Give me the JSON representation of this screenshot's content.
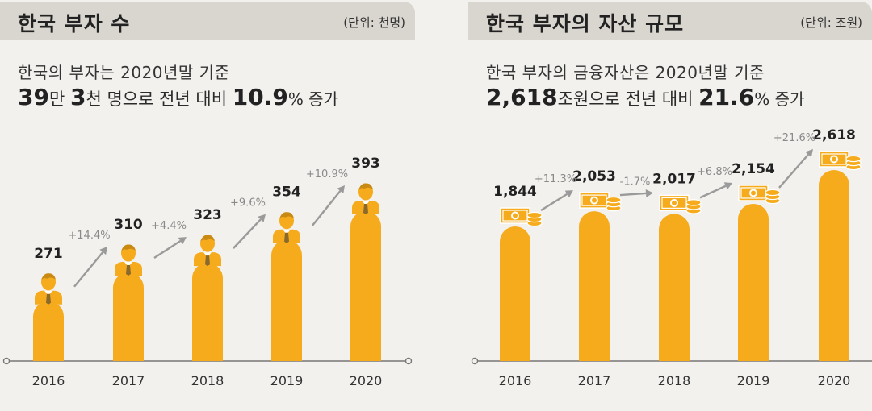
{
  "left": {
    "title": "한국 부자 수",
    "unit": "(단위: 천명)",
    "subtitle": "한국의 부자는 2020년말 기준",
    "headline": {
      "n1": "39",
      "t1": "만 ",
      "n2": "3",
      "t2": "천 명으로 전년 대비 ",
      "n3": "10.9",
      "t3": "% 증가"
    }
  },
  "right": {
    "title": "한국 부자의 자산 규모",
    "unit": "(단위: 조원)",
    "subtitle": "한국 부자의 금융자산은 2020년말 기준",
    "headline": {
      "n1": "2,618",
      "t1": "조원으로 전년 대비 ",
      "n2": "21.6",
      "t2": "% 증가"
    }
  },
  "chart_data": [
    {
      "type": "bar",
      "title": "한국 부자 수",
      "unit": "천명",
      "categories": [
        "2016",
        "2017",
        "2018",
        "2019",
        "2020"
      ],
      "values": [
        271,
        310,
        323,
        354,
        393
      ],
      "value_labels": [
        "271",
        "310",
        "323",
        "354",
        "393"
      ],
      "changes": [
        "+14.4%",
        "+4.4%",
        "+9.6%",
        "+10.9%"
      ],
      "icon": "person-icon",
      "color": "#f5ab1c"
    },
    {
      "type": "bar",
      "title": "한국 부자의 자산 규모",
      "unit": "조원",
      "categories": [
        "2016",
        "2017",
        "2018",
        "2019",
        "2020"
      ],
      "values": [
        1844,
        2053,
        2017,
        2154,
        2618
      ],
      "value_labels": [
        "1,844",
        "2,053",
        "2,017",
        "2,154",
        "2,618"
      ],
      "changes": [
        "+11.3%",
        "-1.7%",
        "+6.8%",
        "+21.6%"
      ],
      "icon": "money-icon",
      "color": "#f5ab1c"
    }
  ]
}
